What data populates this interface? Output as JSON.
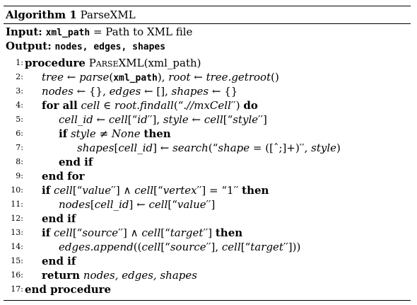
{
  "caption": {
    "label": "Algorithm 1",
    "name": "ParseXML"
  },
  "input": {
    "label": "Input:",
    "var": "xml_path",
    "text": " = Path to XML file"
  },
  "output": {
    "label": "Output:",
    "value": "nodes, edges, shapes"
  },
  "lines": [
    {
      "no": "1:",
      "indent": 0,
      "html": "<b>procedure</b> <span class=\"sc\">ParseXML</span>(xml_path)"
    },
    {
      "no": "2:",
      "indent": 1,
      "html": "<i>tree</i> ← <i>parse</i>(<span class=\"mono\">xml_path</span>), <i>root</i> ← <i>tree.getroot</i>()"
    },
    {
      "no": "3:",
      "indent": 1,
      "html": "<i>nodes</i> ← {}, <i>edges</i> ← [], <i>shapes</i> ← {}"
    },
    {
      "no": "4:",
      "indent": 1,
      "html": "<b>for all</b> <i>cell</i> ∈ <i>root.findall</i>(“<i>.//mxCell</i>′′) <b>do</b>"
    },
    {
      "no": "5:",
      "indent": 2,
      "html": "<i>cell_id</i> ← <i>cell</i>[“<i>id</i>′′], <i>style</i> ← <i>cell</i>[“<i>style</i>′′]"
    },
    {
      "no": "6:",
      "indent": 2,
      "html": "<b>if</b> <i>style</i> ≠ <i>None</i> <b>then</b>"
    },
    {
      "no": "7:",
      "indent": 3,
      "html": "<i>shapes</i>[<i>cell_id</i>] ← <i>search</i>(“<i>shape</i> = ([ˆ;]+)′′, <i>style</i>)"
    },
    {
      "no": "8:",
      "indent": 2,
      "html": "<b>end if</b>"
    },
    {
      "no": "9:",
      "indent": 1,
      "html": "<b>end for</b>"
    },
    {
      "no": "10:",
      "indent": 1,
      "html": "<b>if</b> <i>cell</i>[“<i>value</i>′′] ∧ <i>cell</i>[“<i>vertex</i>′′] = “1′′ <b>then</b>"
    },
    {
      "no": "11:",
      "indent": 2,
      "html": "<i>nodes</i>[<i>cell_id</i>] ← <i>cell</i>[“<i>value</i>′′]"
    },
    {
      "no": "12:",
      "indent": 1,
      "html": "<b>end if</b>"
    },
    {
      "no": "13:",
      "indent": 1,
      "html": "<b>if</b> <i>cell</i>[“<i>source</i>′′] ∧ <i>cell</i>[“<i>target</i>′′] <b>then</b>"
    },
    {
      "no": "14:",
      "indent": 2,
      "html": "<i>edges.append</i>((<i>cell</i>[“<i>source</i>′′], <i>cell</i>[“<i>target</i>′′]))"
    },
    {
      "no": "15:",
      "indent": 1,
      "html": "<b>end if</b>"
    },
    {
      "no": "16:",
      "indent": 1,
      "html": "<b>return</b> <i>nodes, edges, shapes</i>"
    },
    {
      "no": "17:",
      "indent": 0,
      "html": "<b>end procedure</b>"
    }
  ]
}
